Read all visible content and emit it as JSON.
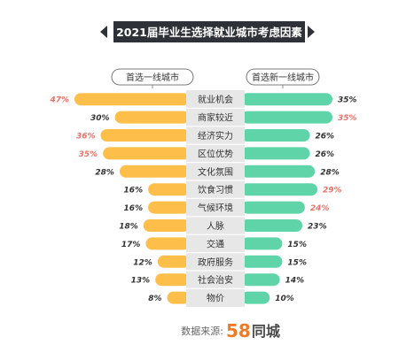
{
  "title": "2021届毕业生选择就业城市考虑因素",
  "source_label": "数据来源:",
  "logo": {
    "number": "58",
    "text": "同城"
  },
  "colors": {
    "left_bar": "#FDBF4A",
    "right_bar": "#5ED4A8",
    "center_bg": "#E7E7E7",
    "highlight_text": "#E8736A",
    "normal_text": "#333333",
    "title_bg": "#2E3238",
    "logo_orange": "#F07A25"
  },
  "chart_data": {
    "type": "bar",
    "layout": "butterfly",
    "categories": [
      "就业机会",
      "商家较近",
      "经济实力",
      "区位优势",
      "文化氛围",
      "饮食习惯",
      "气候环境",
      "人脉",
      "交通",
      "政府服务",
      "社会治安",
      "物价"
    ],
    "series": [
      {
        "name": "首选一线城市",
        "side": "left",
        "values": [
          47,
          30,
          36,
          35,
          28,
          16,
          16,
          18,
          17,
          12,
          13,
          8
        ],
        "labels": [
          "47%",
          "30%",
          "36%",
          "35%",
          "28%",
          "16%",
          "16%",
          "18%",
          "17%",
          "12%",
          "13%",
          "8%"
        ],
        "highlighted": [
          true,
          false,
          true,
          true,
          false,
          false,
          false,
          false,
          false,
          false,
          false,
          false
        ]
      },
      {
        "name": "首选新一线城市",
        "side": "right",
        "values": [
          35,
          35,
          26,
          26,
          28,
          29,
          24,
          23,
          15,
          15,
          14,
          10
        ],
        "labels": [
          "35%",
          "35%",
          "26%",
          "26%",
          "28%",
          "29%",
          "24%",
          "23%",
          "15%",
          "15%",
          "14%",
          "10%"
        ],
        "highlighted": [
          false,
          true,
          false,
          false,
          false,
          true,
          true,
          false,
          false,
          false,
          false,
          false
        ]
      }
    ]
  }
}
